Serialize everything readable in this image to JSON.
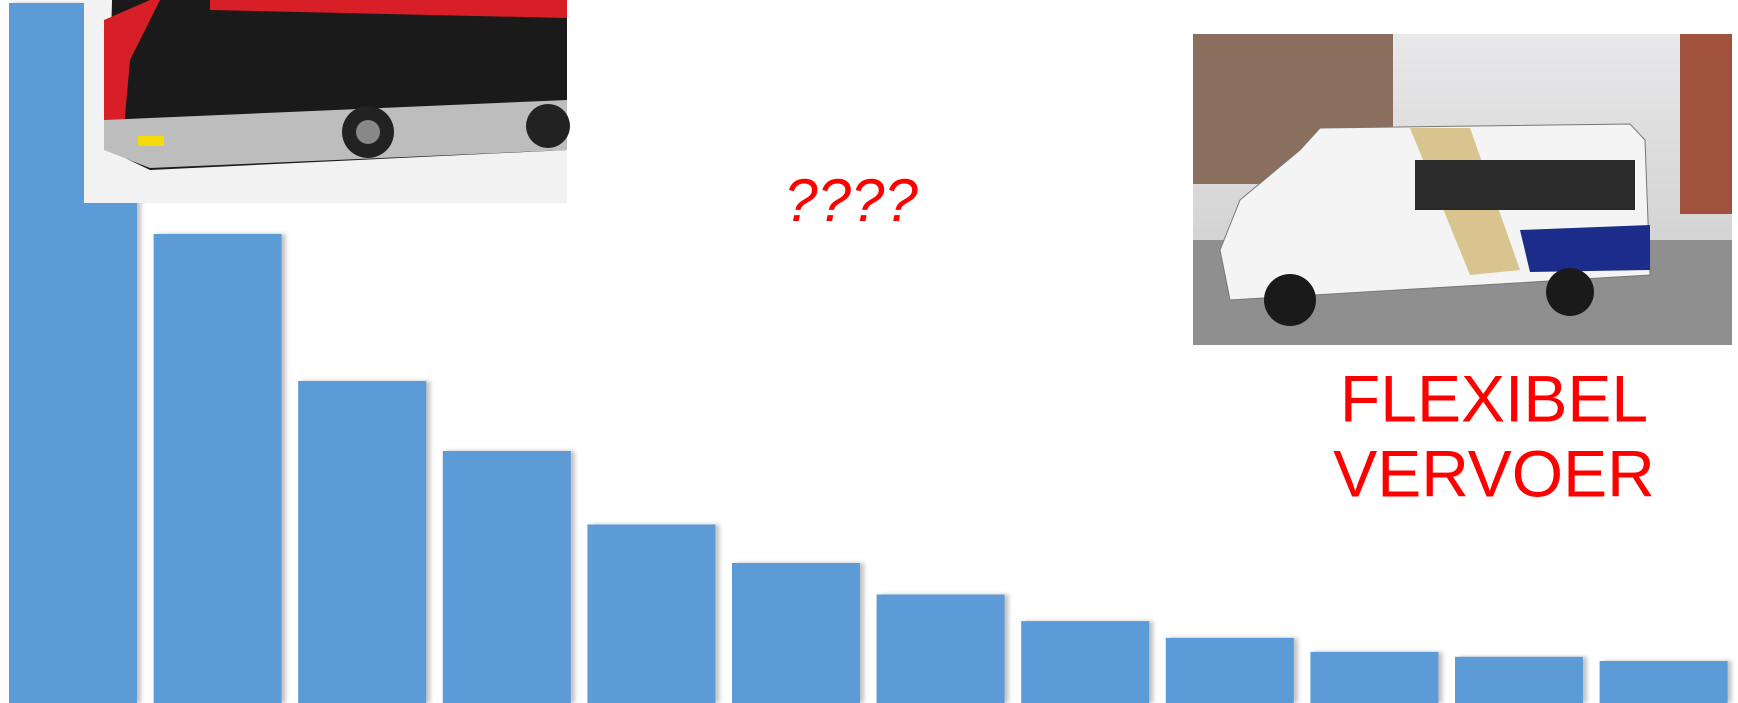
{
  "chart_data": {
    "type": "bar",
    "categories": [
      null,
      null,
      null,
      null,
      null,
      null,
      null,
      null,
      null,
      null,
      null,
      null
    ],
    "values": [
      100,
      67,
      46,
      36,
      25.5,
      20,
      15.5,
      11.7,
      9.3,
      7.3,
      6.6,
      6
    ],
    "color": "#5b9bd5",
    "ylim": [
      0,
      100
    ],
    "annotations": [
      "????",
      "FLEXIBEL",
      "VERVOER"
    ]
  }
}
